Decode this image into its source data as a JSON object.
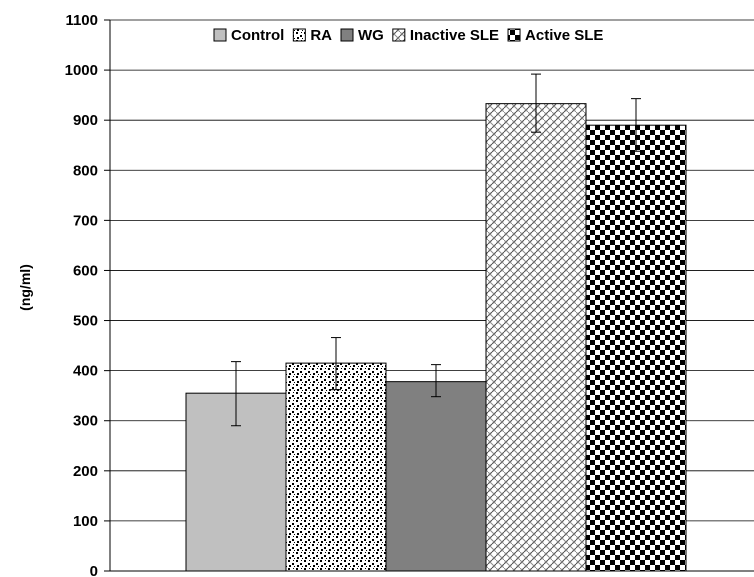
{
  "chart_data": {
    "type": "bar",
    "title": "",
    "xlabel": "",
    "ylabel": "(ng/ml)",
    "ylim": [
      0,
      1100
    ],
    "yticks": [
      0,
      100,
      200,
      300,
      400,
      500,
      600,
      700,
      800,
      900,
      1000,
      1100
    ],
    "grid": true,
    "legend_position": "top",
    "series": [
      {
        "name": "Control",
        "value": 355,
        "error_low": 290,
        "error_high": 418,
        "fill": "#c0c0c0",
        "pattern": "solid-light"
      },
      {
        "name": "RA",
        "value": 415,
        "error_low": 362,
        "error_high": 466,
        "fill": "#ffffff",
        "pattern": "dots"
      },
      {
        "name": "WG",
        "value": 378,
        "error_low": 348,
        "error_high": 412,
        "fill": "#808080",
        "pattern": "solid-dark"
      },
      {
        "name": "Inactive SLE",
        "value": 933,
        "error_low": 876,
        "error_high": 992,
        "fill": "#ffffff",
        "pattern": "weave"
      },
      {
        "name": "Active SLE",
        "value": 890,
        "error_low": 838,
        "error_high": 943,
        "fill": "#ffffff",
        "pattern": "checker"
      }
    ]
  }
}
